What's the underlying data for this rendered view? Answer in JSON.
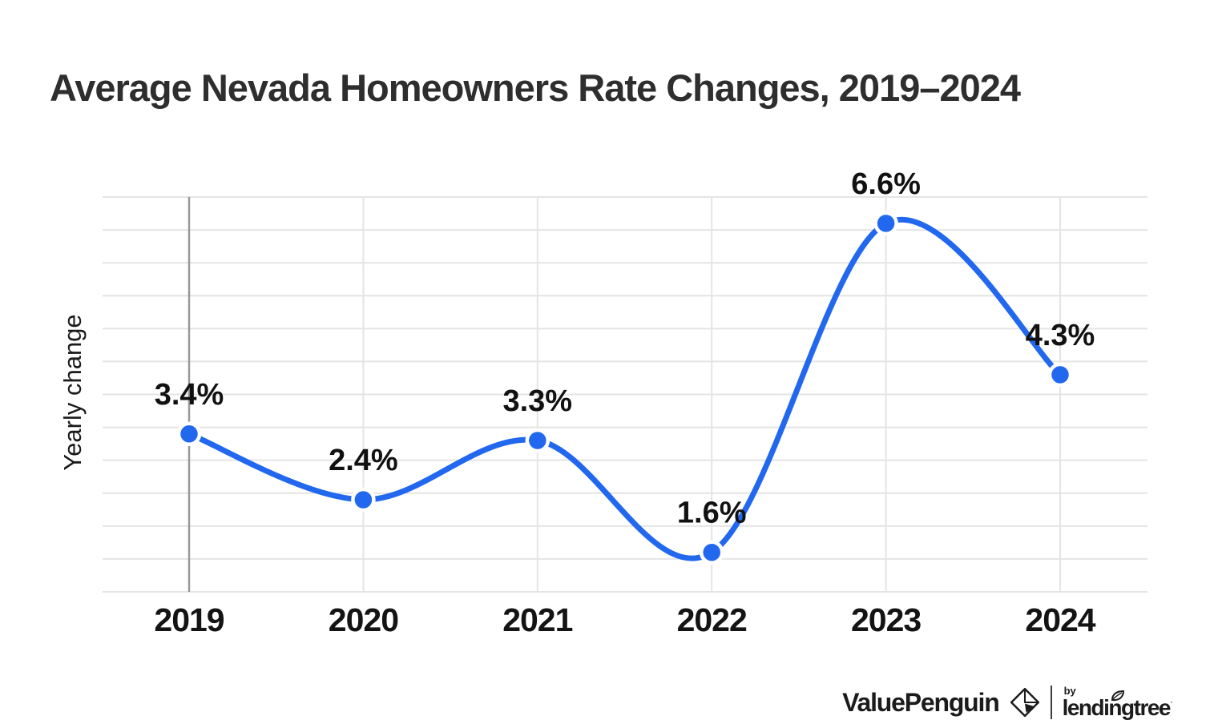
{
  "title": "Average Nevada Homeowners Rate Changes, 2019–2024",
  "chart_data": {
    "type": "line",
    "title": "Average Nevada Homeowners Rate Changes, 2019–2024",
    "categories": [
      "2019",
      "2020",
      "2021",
      "2022",
      "2023",
      "2024"
    ],
    "values": [
      3.4,
      2.4,
      3.3,
      1.6,
      6.6,
      4.3
    ],
    "point_labels": [
      "3.4%",
      "2.4%",
      "3.3%",
      "1.6%",
      "6.6%",
      "4.3%"
    ],
    "xlabel": "",
    "ylabel": "Yearly change",
    "ylim": [
      1.0,
      7.0
    ],
    "grid_step": 0.5,
    "grid": "on",
    "legend": "none",
    "colors": {
      "line": "#2268ee",
      "marker": "#2268ee",
      "marker_ring": "#ffffff",
      "gridline": "#e4e4e4",
      "first_category_axis": "#999999",
      "label_text": "#111111",
      "tick_text": "#141414",
      "title_text": "#2e2e2e"
    }
  },
  "footer": {
    "brand": "ValuePenguin",
    "by_label": "by",
    "partner": "lendingtree",
    "partner_mark": "·"
  }
}
